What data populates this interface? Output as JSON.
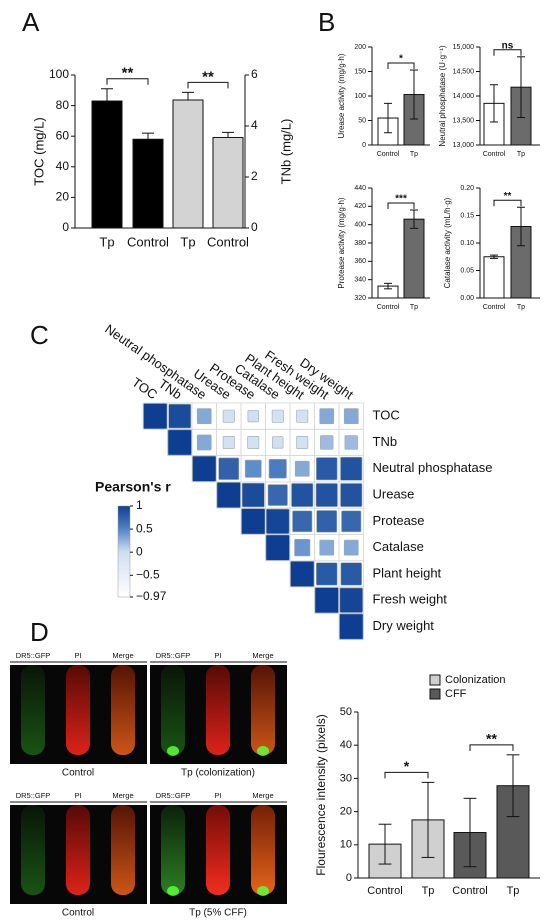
{
  "panel_labels": [
    "A",
    "B",
    "C",
    "D"
  ],
  "chart_data": [
    {
      "type": "bar",
      "categories": [
        "Tp",
        "Control",
        "Tp",
        "Control"
      ],
      "ylabel": "TOC (mg/L)",
      "y2label": "TNb (mg/L)",
      "ylim": [
        0,
        100
      ],
      "yticks": [
        0,
        20,
        40,
        60,
        80,
        100
      ],
      "y2lim": [
        0,
        6
      ],
      "y2ticks": [
        0,
        2,
        4,
        6
      ],
      "series": [
        {
          "color": "#000000",
          "values": [
            83,
            58,
            null,
            null
          ],
          "errors": [
            8,
            4,
            null,
            null
          ]
        },
        {
          "color": "#d3d3d3",
          "axis": "y2",
          "values": [
            null,
            null,
            5.02,
            3.55
          ],
          "errors": [
            null,
            null,
            0.3,
            0.2
          ]
        }
      ],
      "annotations": [
        "**",
        "**"
      ]
    },
    {
      "type": "bar",
      "categories": [
        "Control",
        "Tp"
      ],
      "ylabel": "Urease activity (mg/g·h)",
      "ylim": [
        0,
        200
      ],
      "yticks": [
        0,
        50,
        100,
        150,
        200
      ],
      "series": [
        {
          "color": "#ffffff",
          "values": [
            55,
            null
          ],
          "errors": [
            30,
            null
          ]
        },
        {
          "color": "#6b6b6b",
          "values": [
            null,
            103
          ],
          "errors": [
            null,
            50
          ]
        }
      ],
      "annotations": [
        "*"
      ]
    },
    {
      "type": "bar",
      "categories": [
        "Control",
        "Tp"
      ],
      "ylabel": "Neutral phosphatase (U·g⁻¹)",
      "ylim": [
        13000,
        15000
      ],
      "yticks": [
        {
          "value": 13000,
          "label": "13,000"
        },
        {
          "value": 13500,
          "label": "13,500"
        },
        {
          "value": 14000,
          "label": "14,000"
        },
        {
          "value": 14500,
          "label": "14,500"
        },
        {
          "value": 15000,
          "label": "15,000"
        }
      ],
      "series": [
        {
          "color": "#ffffff",
          "values": [
            13850,
            null
          ],
          "errors": [
            380,
            null
          ]
        },
        {
          "color": "#6b6b6b",
          "values": [
            null,
            14180
          ],
          "errors": [
            null,
            620
          ]
        }
      ],
      "annotations": [
        "ns"
      ]
    },
    {
      "type": "bar",
      "categories": [
        "Control",
        "Tp"
      ],
      "ylabel": "Protease activity (mg/g·h)",
      "ylim": [
        320,
        440
      ],
      "yticks": [
        320,
        340,
        360,
        380,
        400,
        420,
        440
      ],
      "series": [
        {
          "color": "#ffffff",
          "values": [
            333,
            null
          ],
          "errors": [
            3,
            null
          ]
        },
        {
          "color": "#6b6b6b",
          "values": [
            null,
            406
          ],
          "errors": [
            null,
            10
          ]
        }
      ],
      "annotations": [
        "***"
      ]
    },
    {
      "type": "bar",
      "categories": [
        "Control",
        "Tp"
      ],
      "ylabel": "Catalase activity (mL/h·g)",
      "ylim": [
        0,
        0.2
      ],
      "yticks": [
        {
          "value": 0,
          "label": "0.00"
        },
        0.05,
        {
          "value": 0.1,
          "label": "0.10"
        },
        0.15,
        {
          "value": 0.2,
          "label": "0.20"
        }
      ],
      "series": [
        {
          "color": "#ffffff",
          "values": [
            0.075,
            null
          ],
          "errors": [
            0.003,
            null
          ]
        },
        {
          "color": "#6b6b6b",
          "values": [
            null,
            0.13
          ],
          "errors": [
            null,
            0.035
          ]
        }
      ],
      "annotations": [
        "**"
      ]
    },
    {
      "type": "heatmap",
      "title": "Pearson's r",
      "categories": [
        "TOC",
        "TNb",
        "Neutral phosphatase",
        "Urease",
        "Protease",
        "Catalase",
        "Plant height",
        "Fresh weight",
        "Dry weight"
      ],
      "values": [
        [
          1,
          0.9,
          0.3,
          -0.1,
          -0.05,
          -0.1,
          -0.1,
          0.3,
          0.3
        ],
        [
          null,
          1,
          0.3,
          -0.1,
          -0.1,
          -0.05,
          -0.1,
          0.2,
          0.2
        ],
        [
          null,
          null,
          1,
          0.75,
          0.45,
          0.55,
          0.3,
          0.8,
          0.85
        ],
        [
          null,
          null,
          null,
          1,
          0.9,
          0.7,
          0.85,
          0.85,
          0.85
        ],
        [
          null,
          null,
          null,
          null,
          1,
          0.95,
          0.7,
          0.75,
          0.7
        ],
        [
          null,
          null,
          null,
          null,
          null,
          1,
          0.4,
          0.3,
          0.3
        ],
        [
          null,
          null,
          null,
          null,
          null,
          null,
          1,
          0.8,
          0.8
        ],
        [
          null,
          null,
          null,
          null,
          null,
          null,
          null,
          1,
          0.95
        ],
        [
          null,
          null,
          null,
          null,
          null,
          null,
          null,
          null,
          1
        ]
      ],
      "zlim": [
        -0.97,
        1
      ],
      "zticks": [
        1,
        0.5,
        0,
        {
          "value": -0.5,
          "label": "−0.5"
        },
        {
          "value": -0.97,
          "label": "−0.97"
        }
      ]
    },
    {
      "type": "bar",
      "categories": [
        "Control",
        "Tp",
        "Control",
        "Tp"
      ],
      "ylabel": "Flourescence intensity (pixels)",
      "ylim": [
        0,
        50
      ],
      "yticks": [
        0,
        10,
        20,
        30,
        40,
        50
      ],
      "series": [
        {
          "name": "Colonization",
          "color": "#d0d0d0",
          "values": [
            10.2,
            17.5,
            null,
            null
          ],
          "errors": [
            6,
            11.3,
            null,
            null
          ]
        },
        {
          "name": "CFF",
          "color": "#595959",
          "values": [
            null,
            null,
            13.7,
            27.8
          ],
          "errors": [
            null,
            null,
            10.3,
            9.3
          ]
        }
      ],
      "legend": "top-right",
      "annotations": [
        "*",
        "**"
      ]
    }
  ],
  "microscopy": {
    "channels": [
      "DR5::GFP",
      "PI",
      "Merge"
    ],
    "captions": [
      "Control",
      "Tp (colonization)",
      "Control",
      "Tp (5% CFF)"
    ]
  }
}
